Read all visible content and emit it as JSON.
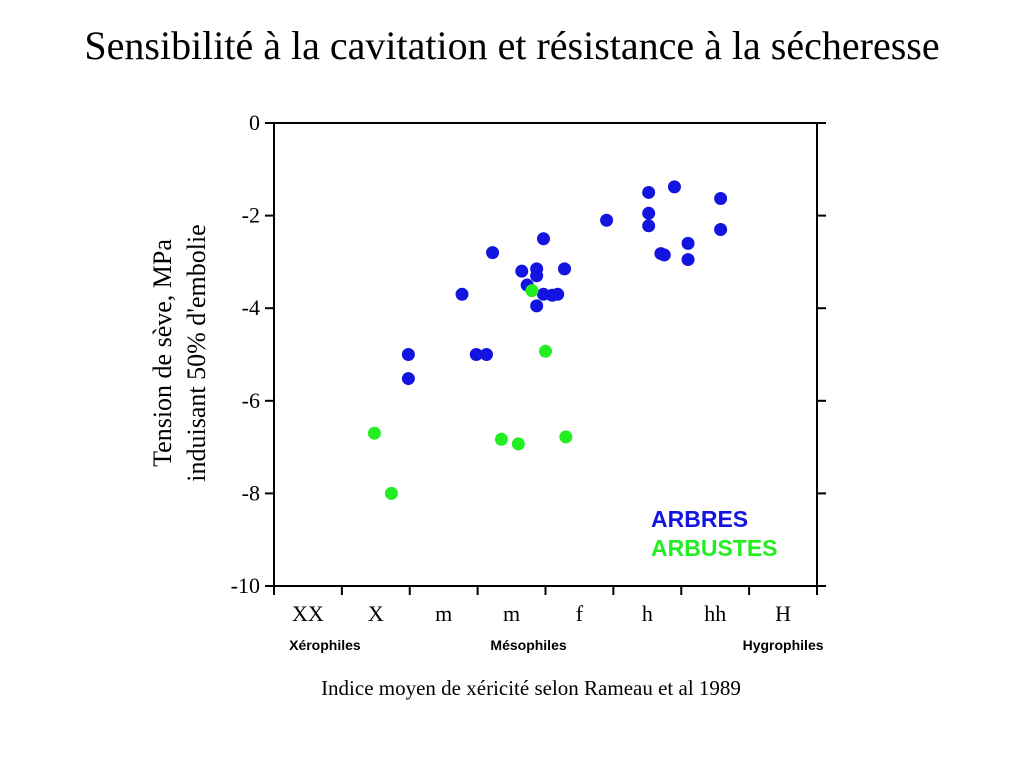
{
  "page": {
    "title": "Sensibilité à la cavitation et résistance à la sécheresse"
  },
  "chart_data": {
    "type": "scatter",
    "title": "Sensibilité à la cavitation et résistance à la sécheresse",
    "xlabel": "Indice moyen de xéricité selon Rameau et al 1989",
    "ylabel": [
      "Tension de sève, MPa",
      "induisant 50% d'embolie"
    ],
    "xlim": [
      0,
      8
    ],
    "ylim": [
      -10,
      0
    ],
    "y_ticks": [
      0,
      -2,
      -4,
      -6,
      -8,
      -10
    ],
    "x_categories": [
      "XX",
      "X",
      "m",
      "m",
      "f",
      "h",
      "hh",
      "H"
    ],
    "x_groups": [
      {
        "label": "Xérophiles",
        "center": 0.75
      },
      {
        "label": "Mésophiles",
        "center": 3.75
      },
      {
        "label": "Hygrophiles",
        "center": 7.5
      }
    ],
    "grid": false,
    "legend_position": "bottom-right",
    "series": [
      {
        "name": "ARBRES",
        "color": "#1414e0",
        "points": [
          {
            "x": 1.98,
            "y": -5.0
          },
          {
            "x": 1.98,
            "y": -5.52
          },
          {
            "x": 2.77,
            "y": -3.7
          },
          {
            "x": 2.98,
            "y": -5.0
          },
          {
            "x": 3.13,
            "y": -5.0
          },
          {
            "x": 3.22,
            "y": -2.8
          },
          {
            "x": 3.65,
            "y": -3.2
          },
          {
            "x": 3.73,
            "y": -3.5
          },
          {
            "x": 3.87,
            "y": -3.15
          },
          {
            "x": 3.87,
            "y": -3.3
          },
          {
            "x": 3.87,
            "y": -3.95
          },
          {
            "x": 3.97,
            "y": -2.5
          },
          {
            "x": 3.97,
            "y": -3.7
          },
          {
            "x": 4.1,
            "y": -3.72
          },
          {
            "x": 4.18,
            "y": -3.7
          },
          {
            "x": 4.28,
            "y": -3.15
          },
          {
            "x": 4.9,
            "y": -2.1
          },
          {
            "x": 5.52,
            "y": -1.5
          },
          {
            "x": 5.52,
            "y": -1.95
          },
          {
            "x": 5.52,
            "y": -2.22
          },
          {
            "x": 5.7,
            "y": -2.82
          },
          {
            "x": 5.75,
            "y": -2.85
          },
          {
            "x": 5.9,
            "y": -1.38
          },
          {
            "x": 6.1,
            "y": -2.6
          },
          {
            "x": 6.1,
            "y": -2.95
          },
          {
            "x": 6.58,
            "y": -1.63
          },
          {
            "x": 6.58,
            "y": -2.3
          }
        ]
      },
      {
        "name": "ARBUSTES",
        "color": "#22ee22",
        "points": [
          {
            "x": 1.48,
            "y": -6.7
          },
          {
            "x": 1.73,
            "y": -8.0
          },
          {
            "x": 3.35,
            "y": -6.83
          },
          {
            "x": 3.6,
            "y": -6.93
          },
          {
            "x": 3.8,
            "y": -3.62
          },
          {
            "x": 4.0,
            "y": -4.93
          },
          {
            "x": 4.3,
            "y": -6.78
          }
        ]
      }
    ]
  }
}
